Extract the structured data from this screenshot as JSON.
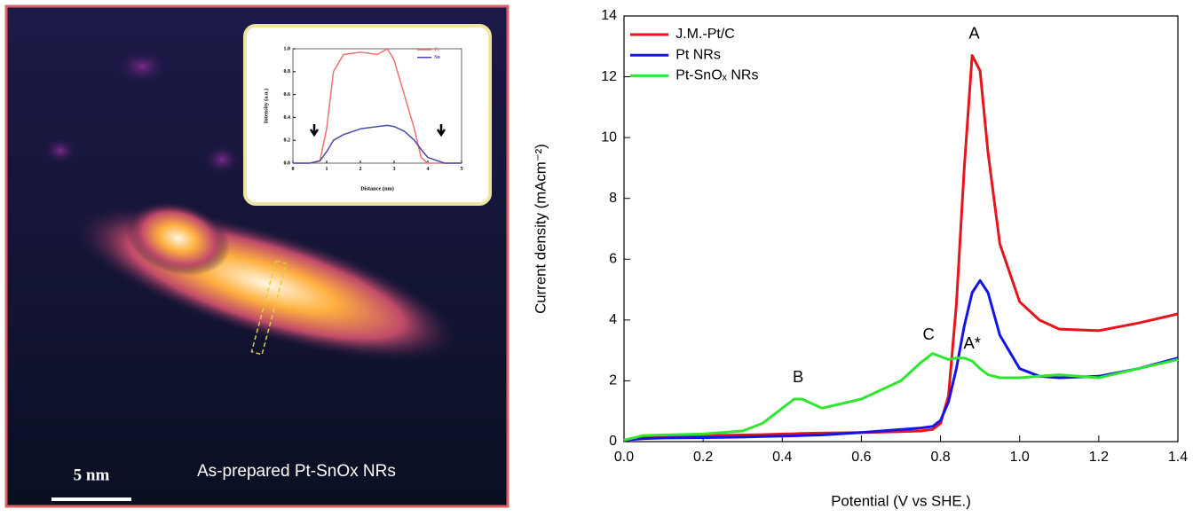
{
  "image": {
    "scale_label": "5 nm",
    "caption": "As-prepared Pt-SnOx NRs"
  },
  "chart_data": [
    {
      "type": "line",
      "x_label": "Distance (nm)",
      "y_label": "Intensity (a.u.)",
      "legend": "upper right",
      "x": [
        0,
        0.5,
        0.8,
        1.0,
        1.2,
        1.5,
        2.0,
        2.5,
        2.8,
        3.0,
        3.3,
        3.6,
        3.8,
        4.0,
        4.5,
        5.0
      ],
      "series": [
        {
          "name": "Pt",
          "color": "#f07070",
          "values": [
            0,
            0,
            0.02,
            0.3,
            0.8,
            0.95,
            0.97,
            0.95,
            1.0,
            0.9,
            0.6,
            0.3,
            0.05,
            0,
            0,
            0
          ]
        },
        {
          "name": "Sn",
          "color": "#4a4aa8",
          "values": [
            0,
            0,
            0.02,
            0.1,
            0.2,
            0.25,
            0.3,
            0.32,
            0.33,
            0.32,
            0.28,
            0.2,
            0.12,
            0.05,
            0,
            0
          ]
        }
      ],
      "xlim": [
        0,
        5
      ],
      "xticks": [
        0,
        1,
        2,
        3,
        4,
        5
      ],
      "ylim": [
        0,
        1
      ],
      "yticks": [
        {
          "value": 0,
          "label": "0.0"
        },
        0.2,
        0.4,
        0.6,
        0.8,
        {
          "value": 1,
          "label": "1.0"
        }
      ]
    },
    {
      "type": "line",
      "x_label": "Potential (V vs SHE.)",
      "y_label": "Current density (mAcm⁻²)",
      "legend": "upper left",
      "x": [
        0,
        0.05,
        0.1,
        0.2,
        0.3,
        0.35,
        0.4,
        0.43,
        0.45,
        0.5,
        0.6,
        0.7,
        0.75,
        0.78,
        0.8,
        0.82,
        0.84,
        0.86,
        0.88,
        0.9,
        0.92,
        0.95,
        1.0,
        1.05,
        1.1,
        1.2,
        1.3,
        1.4
      ],
      "series": [
        {
          "name": "J.M.-Pt/C",
          "color": "#e8141b",
          "values": [
            0.05,
            0.15,
            0.18,
            0.2,
            0.22,
            0.23,
            0.25,
            0.26,
            0.27,
            0.28,
            0.3,
            0.33,
            0.35,
            0.4,
            0.6,
            1.5,
            4.5,
            9,
            12.7,
            12.2,
            9.5,
            6.5,
            4.6,
            4.0,
            3.7,
            3.65,
            3.9,
            4.2
          ]
        },
        {
          "name": "Pt NRs",
          "color": "#1414e6",
          "values": [
            0.05,
            0.1,
            0.12,
            0.13,
            0.15,
            0.17,
            0.18,
            0.19,
            0.2,
            0.22,
            0.3,
            0.4,
            0.45,
            0.5,
            0.7,
            1.3,
            2.4,
            3.8,
            4.9,
            5.3,
            4.9,
            3.5,
            2.4,
            2.15,
            2.1,
            2.15,
            2.4,
            2.75
          ]
        },
        {
          "name": "Pt-SnOₓ NRs",
          "color": "#2ee62e",
          "values": [
            0.05,
            0.2,
            0.22,
            0.25,
            0.35,
            0.6,
            1.1,
            1.4,
            1.4,
            1.1,
            1.4,
            2.0,
            2.6,
            2.9,
            2.8,
            2.7,
            2.75,
            2.75,
            2.65,
            2.4,
            2.2,
            2.1,
            2.1,
            2.15,
            2.2,
            2.1,
            2.4,
            2.7
          ]
        }
      ],
      "annotations": [
        {
          "text": "A",
          "x": 0.885,
          "y": 13.4
        },
        {
          "text": "A*",
          "x": 0.88,
          "y": 3.2
        },
        {
          "text": "B",
          "x": 0.44,
          "y": 2.1
        },
        {
          "text": "C",
          "x": 0.77,
          "y": 3.5
        }
      ],
      "xlim": [
        0,
        1.4
      ],
      "xticks": [
        {
          "value": 0,
          "label": "0.0"
        },
        0.2,
        0.4,
        0.6,
        0.8,
        {
          "value": 1,
          "label": "1.0"
        },
        1.2,
        1.4
      ],
      "ylim": [
        0,
        14
      ],
      "yticks": [
        0,
        2,
        4,
        6,
        8,
        10,
        12,
        14
      ]
    }
  ]
}
